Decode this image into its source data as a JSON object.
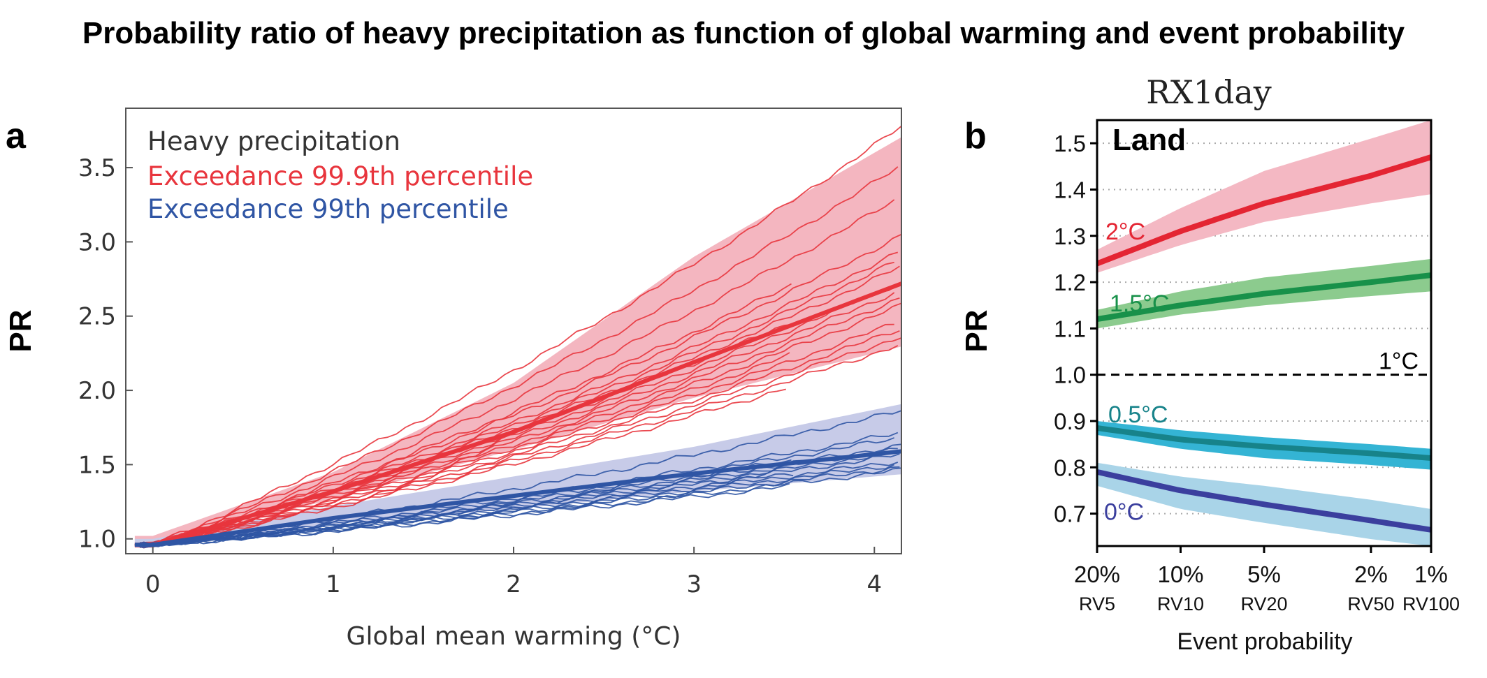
{
  "figure_title": "Probability ratio of heavy precipitation as function of global warming and event probability",
  "panel_a": {
    "letter": "a",
    "legend_title": "Heavy precipitation",
    "chart_data": {
      "type": "line",
      "xlabel": "Global mean warming (°C)",
      "ylabel": "PR",
      "xlim": [
        -0.15,
        4.15
      ],
      "ylim": [
        0.9,
        3.9
      ],
      "xticks": [
        "0",
        "1",
        "2",
        "3",
        "4"
      ],
      "xtick_values": [
        0,
        1,
        2,
        3,
        4
      ],
      "yticks": [
        "1.0",
        "1.5",
        "2.0",
        "2.5",
        "3.0",
        "3.5"
      ],
      "ytick_values": [
        1.0,
        1.5,
        2.0,
        2.5,
        3.0,
        3.5
      ],
      "series": [
        {
          "name": "Exceedance 99.9th percentile",
          "color": "#e8353d",
          "band_color": "#f4b6c0",
          "x": [
            0,
            1,
            2,
            3,
            4
          ],
          "mean": [
            0.96,
            1.32,
            1.72,
            2.19,
            2.65
          ],
          "lower": [
            0.94,
            1.27,
            1.6,
            1.95,
            2.25
          ],
          "upper": [
            1.02,
            1.45,
            2.05,
            2.9,
            3.6
          ],
          "members_end": [
            3.65,
            3.4,
            3.2,
            3.0,
            2.95,
            2.85,
            2.8,
            2.75,
            2.7,
            2.65,
            2.6,
            2.55,
            2.5,
            2.45,
            2.4,
            2.35,
            2.3,
            2.25,
            2.2
          ]
        },
        {
          "name": "Exceedance 99th percentile",
          "color": "#2f55a4",
          "band_color": "#c7cbe8",
          "x": [
            0,
            1,
            2,
            3,
            4
          ],
          "mean": [
            0.96,
            1.14,
            1.29,
            1.44,
            1.57
          ],
          "lower": [
            0.95,
            1.1,
            1.2,
            1.32,
            1.42
          ],
          "upper": [
            1.0,
            1.22,
            1.42,
            1.62,
            1.87
          ],
          "members_end": [
            1.82,
            1.68,
            1.65,
            1.62,
            1.6,
            1.58,
            1.56,
            1.54,
            1.52,
            1.5,
            1.48,
            1.46,
            1.44,
            1.42
          ]
        }
      ]
    }
  },
  "panel_b": {
    "letter": "b",
    "subtitle": "RX1day",
    "region_label": "Land",
    "chart_data": {
      "type": "line",
      "xlabel": "Event probability",
      "ylabel": "PR",
      "ylim": [
        0.63,
        1.55
      ],
      "yticks": [
        "0.7",
        "0.8",
        "0.9",
        "1.0",
        "1.1",
        "1.2",
        "1.3",
        "1.4",
        "1.5"
      ],
      "ytick_values": [
        0.7,
        0.8,
        0.9,
        1.0,
        1.1,
        1.2,
        1.3,
        1.4,
        1.5
      ],
      "x_positions": [
        0,
        0.25,
        0.5,
        0.82,
        1.0
      ],
      "x_percent": [
        20,
        10,
        5,
        2,
        1
      ],
      "xticks": [
        "20%",
        "10%",
        "5%",
        "2%",
        "1%"
      ],
      "xticks_rv": [
        "RV5",
        "RV10",
        "RV20",
        "RV50",
        "RV100"
      ],
      "reference_level": {
        "label": "1°C",
        "value": 1.0
      },
      "series": [
        {
          "name": "2°C",
          "color": "#e42533",
          "band_color": "#f4b8c3",
          "x": [
            0,
            0.25,
            0.5,
            0.82,
            1.0
          ],
          "mean": [
            1.24,
            1.31,
            1.37,
            1.43,
            1.47
          ],
          "lower": [
            1.22,
            1.28,
            1.33,
            1.37,
            1.39
          ],
          "upper": [
            1.27,
            1.36,
            1.44,
            1.51,
            1.55
          ]
        },
        {
          "name": "1.5°C",
          "color": "#18914a",
          "band_color": "#8ccb8e",
          "x": [
            0,
            0.25,
            0.5,
            0.82,
            1.0
          ],
          "mean": [
            1.12,
            1.15,
            1.175,
            1.2,
            1.215
          ],
          "lower": [
            1.1,
            1.13,
            1.15,
            1.17,
            1.18
          ],
          "upper": [
            1.14,
            1.18,
            1.21,
            1.235,
            1.25
          ]
        },
        {
          "name": "0.5°C",
          "color": "#17838a",
          "band_color": "#34b4d4",
          "x": [
            0,
            0.25,
            0.5,
            0.82,
            1.0
          ],
          "mean": [
            0.885,
            0.86,
            0.845,
            0.83,
            0.82
          ],
          "lower": [
            0.87,
            0.84,
            0.82,
            0.805,
            0.795
          ],
          "upper": [
            0.9,
            0.88,
            0.865,
            0.85,
            0.84
          ]
        },
        {
          "name": "0°C",
          "color": "#3b3f9e",
          "band_color": "#a9d4e8",
          "x": [
            0,
            0.25,
            0.5,
            0.82,
            1.0
          ],
          "mean": [
            0.79,
            0.75,
            0.72,
            0.685,
            0.665
          ],
          "lower": [
            0.76,
            0.71,
            0.68,
            0.645,
            0.63
          ],
          "upper": [
            0.81,
            0.78,
            0.76,
            0.73,
            0.71
          ]
        }
      ]
    }
  }
}
